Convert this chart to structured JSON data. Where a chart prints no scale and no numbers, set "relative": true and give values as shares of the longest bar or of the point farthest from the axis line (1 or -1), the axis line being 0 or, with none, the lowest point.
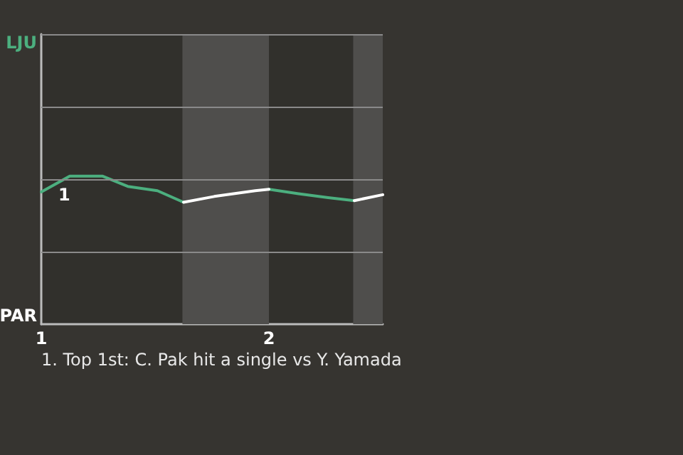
{
  "chart_data": {
    "type": "line",
    "x": [
      1,
      1.125,
      1.27,
      1.38,
      1.51,
      1.625,
      1.76,
      1.94,
      2.0,
      2.13,
      2.26,
      2.375,
      2.5
    ],
    "series": [
      {
        "color": "#4caf7f",
        "values": [
          0.894,
          1,
          1,
          0.931,
          0.902,
          0.824,
          null,
          null,
          0.912,
          0.882,
          0.855,
          0.835,
          null
        ]
      },
      {
        "color": "#ffffff",
        "values": [
          null,
          null,
          null,
          null,
          null,
          0.824,
          0.863,
          0.902,
          0.912,
          null,
          null,
          0.835,
          0.875
        ]
      }
    ],
    "relative": true,
    "xlim": [
      1,
      2.5
    ],
    "xticks": [
      1,
      2
    ],
    "bands": [
      {
        "axis": "x",
        "from": 1.62,
        "to": 2.0,
        "color": "#4f4e4c"
      },
      {
        "axis": "x",
        "from": 2.37,
        "to": 2.5,
        "color": "#4f4e4c"
      }
    ],
    "annotations": [
      "LJU",
      "PAR",
      "1",
      "1. Top 1st: C. Pak hit a single vs Y. Yamada"
    ],
    "ref_lines": [
      {
        "axis": "y",
        "value": 0.49,
        "color": "#8a8a8a"
      },
      {
        "axis": "y",
        "value": 0.98,
        "color": "#8a8a8a"
      },
      {
        "axis": "y",
        "value": 1.47,
        "color": "#8a8a8a"
      },
      {
        "axis": "y",
        "value": 1.96,
        "color": "#8a8a8a"
      }
    ],
    "marker": "none",
    "line_style": "solid"
  }
}
